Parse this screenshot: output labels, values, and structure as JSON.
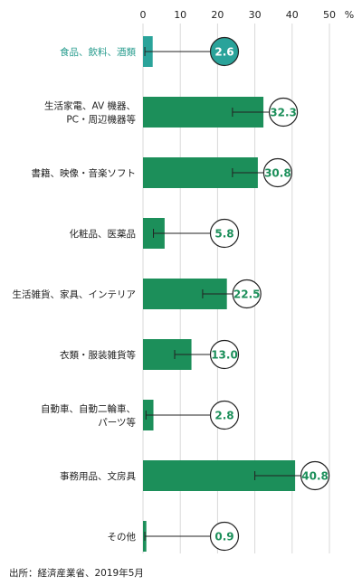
{
  "chart_data": {
    "type": "bar",
    "orientation": "horizontal",
    "unit": "%",
    "xlim": [
      0,
      50
    ],
    "ticks": [
      0,
      10,
      20,
      30,
      40,
      50
    ],
    "grid": true,
    "categories": [
      [
        "食品、飲料、酒類"
      ],
      [
        "生活家電、AV 機器、",
        "PC・周辺機器等"
      ],
      [
        "書籍、映像・音楽ソフト"
      ],
      [
        "化粧品、医薬品"
      ],
      [
        "生活雑貨、家具、インテリア"
      ],
      [
        "衣類・服装雑貨等"
      ],
      [
        "自動車、自動二輪車、",
        "パーツ等"
      ],
      [
        "事務用品、文房具"
      ],
      [
        "その他"
      ]
    ],
    "values": [
      2.6,
      32.3,
      30.8,
      5.8,
      22.5,
      13.0,
      2.8,
      40.8,
      0.9
    ],
    "value_labels": [
      "2.6",
      "32.3",
      "30.8",
      "5.8",
      "22.5",
      "13.0",
      "2.8",
      "40.8",
      "0.9"
    ],
    "errors_low": [
      0.5,
      24.0,
      24.0,
      2.8,
      16.0,
      8.5,
      0.8,
      30.0,
      0.5
    ],
    "highlight_index": 0,
    "colors": {
      "bar": "#1c8f5a",
      "highlight": "#2aa39a",
      "grid": "#d9d9d9",
      "label": "#1c8f5a"
    }
  },
  "source": "出所：経済産業省、2019年5月"
}
